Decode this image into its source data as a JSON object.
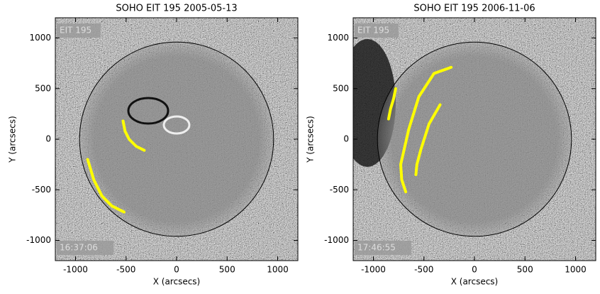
{
  "chart_data": [
    {
      "type": "image",
      "title": "SOHO EIT 195 2005-05-13",
      "xlabel": "X (arcsecs)",
      "ylabel": "Y (arcsecs)",
      "instrument_label": "EIT 195",
      "time_label": "16:37:06",
      "xlim": [
        -1200,
        1200
      ],
      "ylim": [
        -1200,
        1200
      ],
      "xticks": [
        -1000,
        -500,
        0,
        500,
        1000
      ],
      "yticks": [
        -1000,
        -500,
        0,
        500,
        1000
      ],
      "series": [
        {
          "color": "#ffff00",
          "x": [
            -880,
            -820,
            -740,
            -640,
            -520
          ],
          "values": [
            -200,
            -400,
            -560,
            -660,
            -720
          ]
        },
        {
          "color": "#ffff00",
          "x": [
            -530,
            -510,
            -470,
            -400,
            -320
          ],
          "values": [
            180,
            80,
            0,
            -70,
            -110
          ]
        }
      ]
    },
    {
      "type": "image",
      "title": "SOHO EIT 195 2006-11-06",
      "xlabel": "X (arcsecs)",
      "ylabel": "Y (arcsecs)",
      "instrument_label": "EIT 195",
      "time_label": "17:46:55",
      "xlim": [
        -1200,
        1200
      ],
      "ylim": [
        -1200,
        1200
      ],
      "xticks": [
        -1000,
        -500,
        0,
        500,
        1000
      ],
      "yticks": [
        -1000,
        -500,
        0,
        500,
        1000
      ],
      "series": [
        {
          "color": "#ffff00",
          "x": [
            -780,
            -800,
            -830,
            -850
          ],
          "values": [
            500,
            400,
            300,
            200
          ]
        },
        {
          "color": "#ffff00",
          "x": [
            -230,
            -400,
            -550,
            -650,
            -730,
            -720,
            -680
          ],
          "values": [
            710,
            650,
            420,
            100,
            -250,
            -400,
            -520
          ]
        },
        {
          "color": "#ffff00",
          "x": [
            -340,
            -450,
            -530,
            -570,
            -580
          ],
          "values": [
            340,
            150,
            -100,
            -250,
            -350
          ]
        }
      ]
    }
  ]
}
